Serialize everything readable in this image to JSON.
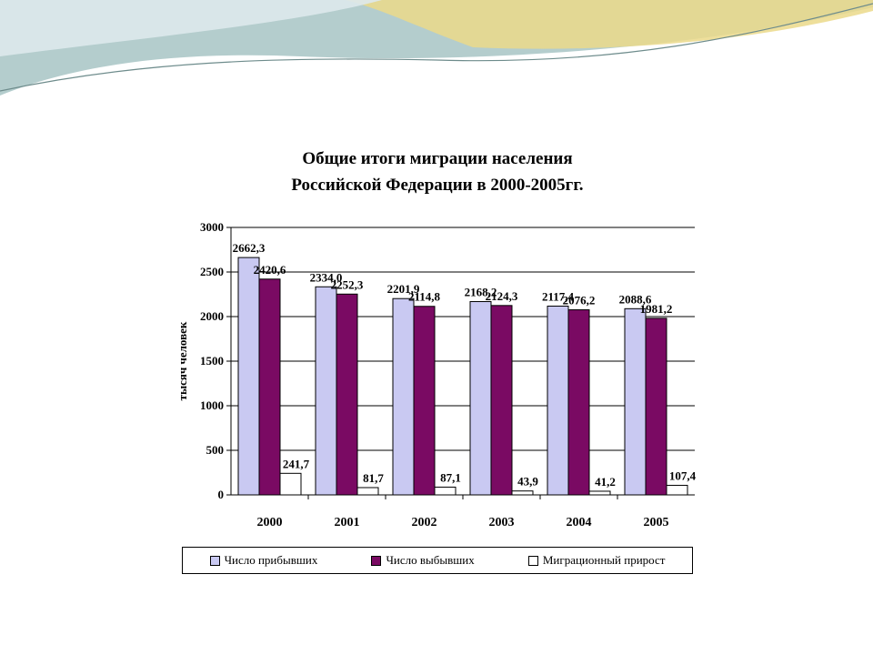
{
  "colors": {
    "arrivals": "#C9C9F2",
    "departures": "#7A0A63",
    "growth": "#FFFFFF",
    "banner_main": "#A7C4C4",
    "banner_accent": "#EBD98A"
  },
  "chart_data": {
    "type": "bar",
    "title": "Общие итоги миграции населения",
    "subtitle": "Российской Федерации в 2000-2005гг.",
    "xlabel": "",
    "ylabel": "тысяч человек",
    "ylim": [
      0,
      3000
    ],
    "yticks": [
      0,
      500,
      1000,
      1500,
      2000,
      2500,
      3000
    ],
    "grid": true,
    "legend_position": "bottom",
    "categories": [
      "2000",
      "2001",
      "2002",
      "2003",
      "2004",
      "2005"
    ],
    "series": [
      {
        "name": "Число прибывших",
        "values": [
          2662.3,
          2334.0,
          2201.9,
          2168.2,
          2117.4,
          2088.6
        ],
        "labels": [
          "2662,3",
          "2334,0",
          "2201,9",
          "2168,2",
          "2117,4",
          "2088,6"
        ]
      },
      {
        "name": "Число выбывших",
        "values": [
          2420.6,
          2252.3,
          2114.8,
          2124.3,
          2076.2,
          1981.2
        ],
        "labels": [
          "2420,6",
          "2252,3",
          "2114,8",
          "2124,3",
          "2076,2",
          "1981,2"
        ]
      },
      {
        "name": "Миграционный прирост",
        "values": [
          241.7,
          81.7,
          87.1,
          43.9,
          41.2,
          107.4
        ],
        "labels": [
          "241,7",
          "81,7",
          "87,1",
          "43,9",
          "41,2",
          "107,4"
        ]
      }
    ]
  }
}
